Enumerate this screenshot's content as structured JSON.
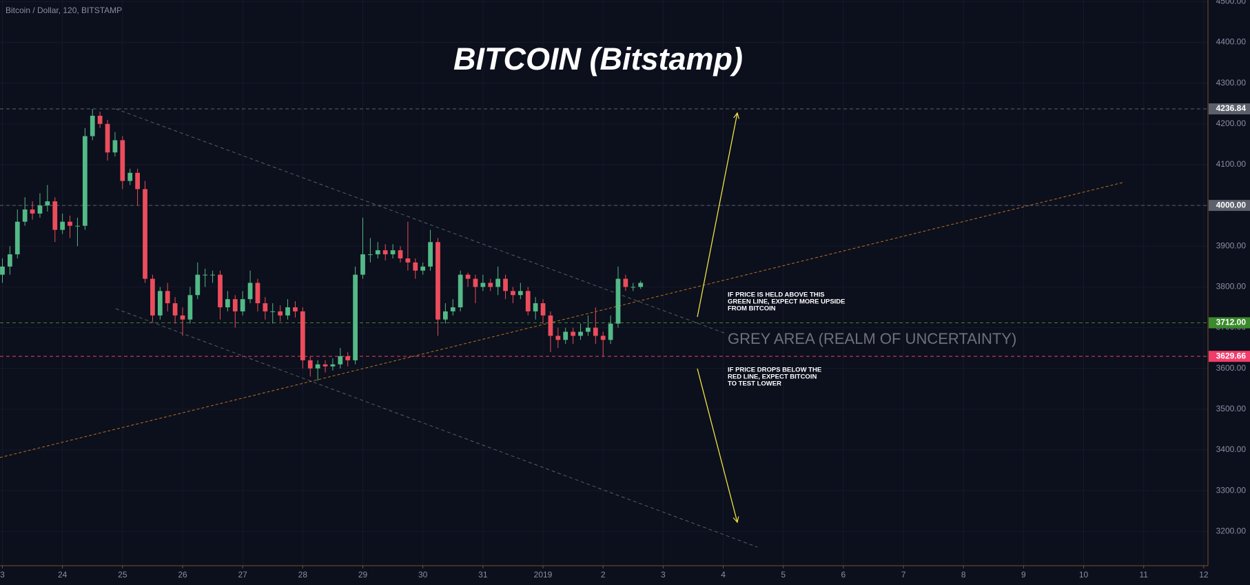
{
  "chart_data": {
    "type": "candlestick",
    "title": "BITCOIN (Bitstamp)",
    "symbol": "Bitcoin / Dollar, 120, BITSTAMP",
    "up_color": "#53b987",
    "down_color": "#eb4d5c",
    "grid": true,
    "x": [
      0,
      0.125,
      0.25,
      0.375,
      0.5,
      0.625,
      0.75,
      0.875,
      1,
      1.125,
      1.25,
      1.375,
      1.5,
      1.625,
      1.75,
      1.875,
      2,
      2.125,
      2.25,
      2.375,
      2.5,
      2.625,
      2.75,
      2.875,
      3,
      3.125,
      3.25,
      3.375,
      3.5,
      3.625,
      3.75,
      3.875,
      4,
      4.125,
      4.25,
      4.375,
      4.5,
      4.625,
      4.75,
      4.875,
      5,
      5.125,
      5.25,
      5.375,
      5.5,
      5.625,
      5.75,
      5.875,
      6,
      6.125,
      6.25,
      6.375,
      6.5,
      6.625,
      6.75,
      6.875,
      7,
      7.125,
      7.25,
      7.375,
      7.5,
      7.625,
      7.75,
      7.875,
      8,
      8.125,
      8.25,
      8.375,
      8.5,
      8.625,
      8.75,
      8.875,
      9,
      9.125,
      9.25,
      9.375,
      9.5,
      9.625,
      9.75,
      9.875,
      10,
      10.125,
      10.25,
      10.375,
      10.5,
      10.625
    ],
    "open": [
      3830,
      3850,
      3880,
      3960,
      3990,
      3980,
      4000,
      4010,
      3940,
      3960,
      3950,
      3950,
      4170,
      4220,
      4200,
      4130,
      4160,
      4060,
      4080,
      4040,
      3820,
      3730,
      3790,
      3760,
      3730,
      3720,
      3780,
      3830,
      3830,
      3830,
      3750,
      3770,
      3740,
      3770,
      3810,
      3760,
      3740,
      3740,
      3730,
      3750,
      3740,
      3620,
      3600,
      3610,
      3605,
      3610,
      3630,
      3620,
      3830,
      3880,
      3880,
      3890,
      3880,
      3890,
      3870,
      3860,
      3840,
      3850,
      3910,
      3720,
      3740,
      3750,
      3830,
      3820,
      3800,
      3810,
      3800,
      3820,
      3790,
      3780,
      3790,
      3740,
      3760,
      3730,
      3680,
      3670,
      3690,
      3680,
      3690,
      3700,
      3680,
      3670,
      3710,
      3820,
      3800,
      3800
    ],
    "high": [
      3870,
      3900,
      3990,
      4020,
      4010,
      4030,
      4050,
      4020,
      3980,
      3975,
      3970,
      4190,
      4237,
      4230,
      4210,
      4180,
      4170,
      4090,
      4090,
      4060,
      3830,
      3800,
      3810,
      3775,
      3750,
      3800,
      3860,
      3845,
      3840,
      3840,
      3790,
      3780,
      3790,
      3840,
      3820,
      3775,
      3760,
      3755,
      3770,
      3765,
      3750,
      3630,
      3620,
      3620,
      3625,
      3650,
      3640,
      3850,
      3970,
      3920,
      3910,
      3905,
      3905,
      3900,
      3960,
      3870,
      3860,
      3940,
      3920,
      3760,
      3770,
      3840,
      3835,
      3830,
      3830,
      3820,
      3850,
      3830,
      3800,
      3810,
      3800,
      3775,
      3770,
      3740,
      3700,
      3700,
      3700,
      3710,
      3730,
      3750,
      3690,
      3730,
      3850,
      3830,
      3810,
      3815
    ],
    "low": [
      3810,
      3830,
      3870,
      3950,
      3965,
      3970,
      3985,
      3910,
      3930,
      3920,
      3900,
      3940,
      4160,
      4190,
      4110,
      4120,
      4040,
      4050,
      4000,
      3810,
      3715,
      3720,
      3740,
      3710,
      3680,
      3710,
      3770,
      3800,
      3810,
      3720,
      3740,
      3700,
      3730,
      3760,
      3740,
      3720,
      3710,
      3715,
      3720,
      3725,
      3600,
      3580,
      3570,
      3590,
      3595,
      3600,
      3605,
      3610,
      3820,
      3860,
      3870,
      3865,
      3870,
      3860,
      3840,
      3820,
      3830,
      3840,
      3680,
      3710,
      3730,
      3740,
      3800,
      3760,
      3790,
      3790,
      3780,
      3770,
      3760,
      3770,
      3730,
      3720,
      3710,
      3640,
      3650,
      3660,
      3660,
      3670,
      3680,
      3660,
      3630,
      3660,
      3700,
      3790,
      3790,
      3795
    ],
    "close": [
      3850,
      3880,
      3960,
      3990,
      3980,
      4000,
      4010,
      3940,
      3960,
      3950,
      3950,
      4170,
      4220,
      4200,
      4130,
      4160,
      4060,
      4080,
      4040,
      3820,
      3730,
      3790,
      3760,
      3730,
      3720,
      3780,
      3830,
      3830,
      3830,
      3750,
      3770,
      3740,
      3770,
      3810,
      3760,
      3740,
      3740,
      3730,
      3750,
      3740,
      3620,
      3600,
      3610,
      3605,
      3610,
      3630,
      3620,
      3830,
      3880,
      3880,
      3890,
      3880,
      3890,
      3870,
      3860,
      3840,
      3850,
      3910,
      3720,
      3740,
      3750,
      3830,
      3820,
      3800,
      3810,
      3800,
      3820,
      3790,
      3780,
      3790,
      3740,
      3760,
      3730,
      3680,
      3670,
      3690,
      3680,
      3690,
      3700,
      3680,
      3670,
      3710,
      3820,
      3800,
      3800,
      3810
    ],
    "xlim": [
      -0.04,
      20.07
    ],
    "xticks": [
      {
        "value": 0,
        "label": "3"
      },
      {
        "value": 1,
        "label": "24"
      },
      {
        "value": 2,
        "label": "25"
      },
      {
        "value": 3,
        "label": "26"
      },
      {
        "value": 4,
        "label": "27"
      },
      {
        "value": 5,
        "label": "28"
      },
      {
        "value": 6,
        "label": "29"
      },
      {
        "value": 7,
        "label": "30"
      },
      {
        "value": 8,
        "label": "31"
      },
      {
        "value": 9,
        "label": "2019"
      },
      {
        "value": 10,
        "label": "2"
      },
      {
        "value": 11,
        "label": "3"
      },
      {
        "value": 12,
        "label": "4"
      },
      {
        "value": 13,
        "label": "5"
      },
      {
        "value": 14,
        "label": "6"
      },
      {
        "value": 15,
        "label": "7"
      },
      {
        "value": 16,
        "label": "8"
      },
      {
        "value": 17,
        "label": "9"
      },
      {
        "value": 18,
        "label": "10"
      },
      {
        "value": 19,
        "label": "11"
      },
      {
        "value": 20,
        "label": "12"
      }
    ],
    "ylim": [
      3116,
      4504
    ],
    "yticks": [
      {
        "value": 3200,
        "label": "3200.00"
      },
      {
        "value": 3300,
        "label": "3300.00"
      },
      {
        "value": 3400,
        "label": "3400.00"
      },
      {
        "value": 3500,
        "label": "3500.00"
      },
      {
        "value": 3600,
        "label": "3600.00"
      },
      {
        "value": 3700,
        "label": "3700.00"
      },
      {
        "value": 3800,
        "label": "3800.00"
      },
      {
        "value": 3900,
        "label": "3900.00"
      },
      {
        "value": 4000,
        "label": "4000.00"
      },
      {
        "value": 4100,
        "label": "4100.00"
      },
      {
        "value": 4200,
        "label": "4200.00"
      },
      {
        "value": 4300,
        "label": "4300.00"
      },
      {
        "value": 4400,
        "label": "4400.00"
      },
      {
        "value": 4500,
        "label": "4500.00"
      }
    ],
    "levels": [
      {
        "value": 4236.84,
        "label": "4236.84",
        "color": "#5d606b"
      },
      {
        "value": 4000,
        "label": "4000.00",
        "color": "#5d606b"
      },
      {
        "value": 3712,
        "label": "3712.00",
        "color": "#3c8a2e"
      },
      {
        "value": 3629.66,
        "label": "3629.66",
        "color": "#f23d6b"
      }
    ],
    "annotations": {
      "above": [
        "IF PRICE IS HELD ABOVE THIS",
        "GREEN LINE, EXPECT MORE UPSIDE",
        "FROM BITCOIN"
      ],
      "grey_area": "GREY AREA (REALM OF UNCERTAINTY)",
      "below": [
        "IF PRICE DROPS BELOW THE",
        "RED LINE, EXPECT BITCOIN",
        "TO TEST LOWER"
      ]
    }
  }
}
